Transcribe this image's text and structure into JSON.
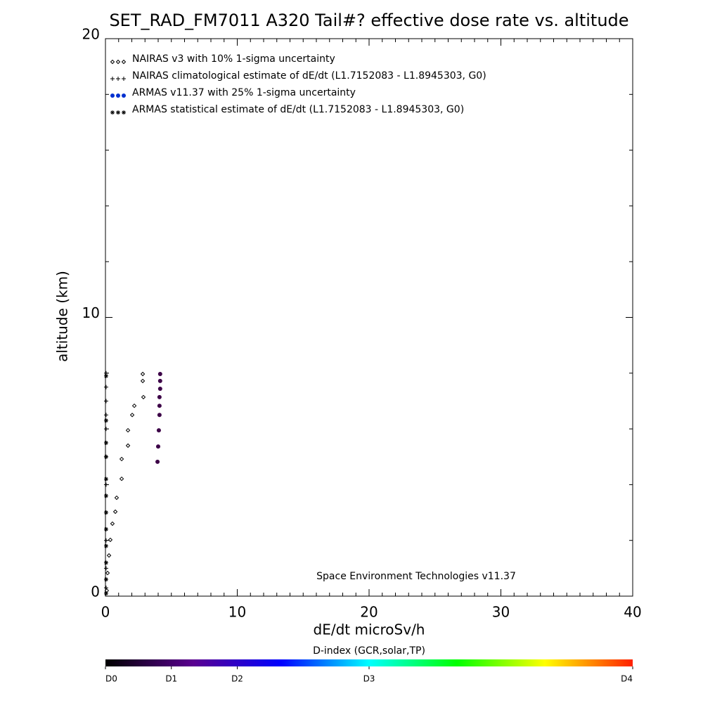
{
  "chart_data": {
    "type": "scatter",
    "title": "SET_RAD_FM7011  A320 Tail#? effective dose rate vs. altitude",
    "x_label": "dE/dt microSv/h",
    "y_label": "altitude (km)",
    "annotation": "Space Environment Technologies v11.37",
    "xlim": [
      0,
      40
    ],
    "ylim": [
      0,
      20
    ],
    "xticks": [
      0,
      10,
      20,
      30,
      40
    ],
    "yticks": [
      0,
      10,
      20
    ],
    "xminorticks": [
      1,
      2,
      3,
      4,
      5,
      6,
      7,
      8,
      9,
      11,
      12,
      13,
      14,
      15,
      16,
      17,
      18,
      19,
      21,
      22,
      23,
      24,
      25,
      26,
      27,
      28,
      29,
      31,
      32,
      33,
      34,
      35,
      36,
      37,
      38,
      39
    ],
    "yminorticks": [
      2,
      4,
      6,
      8,
      12,
      14,
      16,
      18
    ],
    "series": [
      {
        "name": "NAIRAS v3 with 10% 1-sigma uncertainty",
        "marker": "diamond",
        "color": "#000000",
        "x": [
          2.83,
          2.83,
          2.88,
          2.19,
          2.03,
          1.71,
          1.71,
          1.23,
          1.23,
          0.85,
          0.75,
          0.53,
          0.37,
          0.27,
          0.16,
          0.1
        ],
        "values": [
          7.97,
          7.72,
          7.14,
          6.83,
          6.5,
          5.95,
          5.4,
          4.92,
          4.21,
          3.53,
          3.03,
          2.6,
          2.02,
          1.46,
          0.83,
          0.2
        ]
      },
      {
        "name": "NAIRAS climatological estimate of dE/dt (L1.7152083 - L1.8945303, G0)",
        "marker": "plus",
        "color": "#000000",
        "x": [
          0.05,
          0.05,
          0.05,
          0.05,
          0.05,
          0.05,
          0.05,
          0.05,
          0.05,
          0.05,
          0.05
        ],
        "values": [
          8.0,
          7.5,
          7.0,
          6.5,
          6.0,
          5.0,
          4.0,
          3.0,
          2.0,
          1.0,
          0.3
        ]
      },
      {
        "name": "ARMAS v11.37 with 25% 1-sigma uncertainty",
        "marker": "dot",
        "color": "#0030d0",
        "point_color": "#3c0047",
        "x": [
          3.95,
          4.0,
          4.05,
          4.1,
          4.1,
          4.1,
          4.15,
          4.15,
          4.15
        ],
        "values": [
          4.82,
          5.37,
          5.95,
          6.5,
          6.83,
          7.14,
          7.44,
          7.72,
          7.97
        ]
      },
      {
        "name": "ARMAS statistical estimate of dE/dt (L1.7152083 - L1.8945303, G0)",
        "marker": "asterisk",
        "color": "#000000",
        "x": [
          0.05,
          0.05,
          0.05,
          0.05,
          0.05,
          0.05,
          0.05,
          0.05,
          0.05,
          0.05,
          0.05,
          0.05
        ],
        "values": [
          7.9,
          6.3,
          5.5,
          5.0,
          4.2,
          3.6,
          3.0,
          2.4,
          1.8,
          1.2,
          0.6,
          0.1
        ]
      }
    ],
    "colorbar": {
      "title": "D-index (GCR,solar,TP)",
      "lim": [
        0,
        1
      ],
      "colors": [
        "#000000",
        "#5a0090",
        "#0000ff",
        "#00ffff",
        "#00ff00",
        "#ffff00",
        "#ff2000"
      ],
      "ticks": [
        {
          "value": 0,
          "label": "D0"
        },
        {
          "value": 0.125,
          "label": "D1"
        },
        {
          "value": 0.25,
          "label": "D2"
        },
        {
          "value": 0.5,
          "label": "D3"
        },
        {
          "value": 1,
          "label": "D4"
        }
      ]
    }
  }
}
